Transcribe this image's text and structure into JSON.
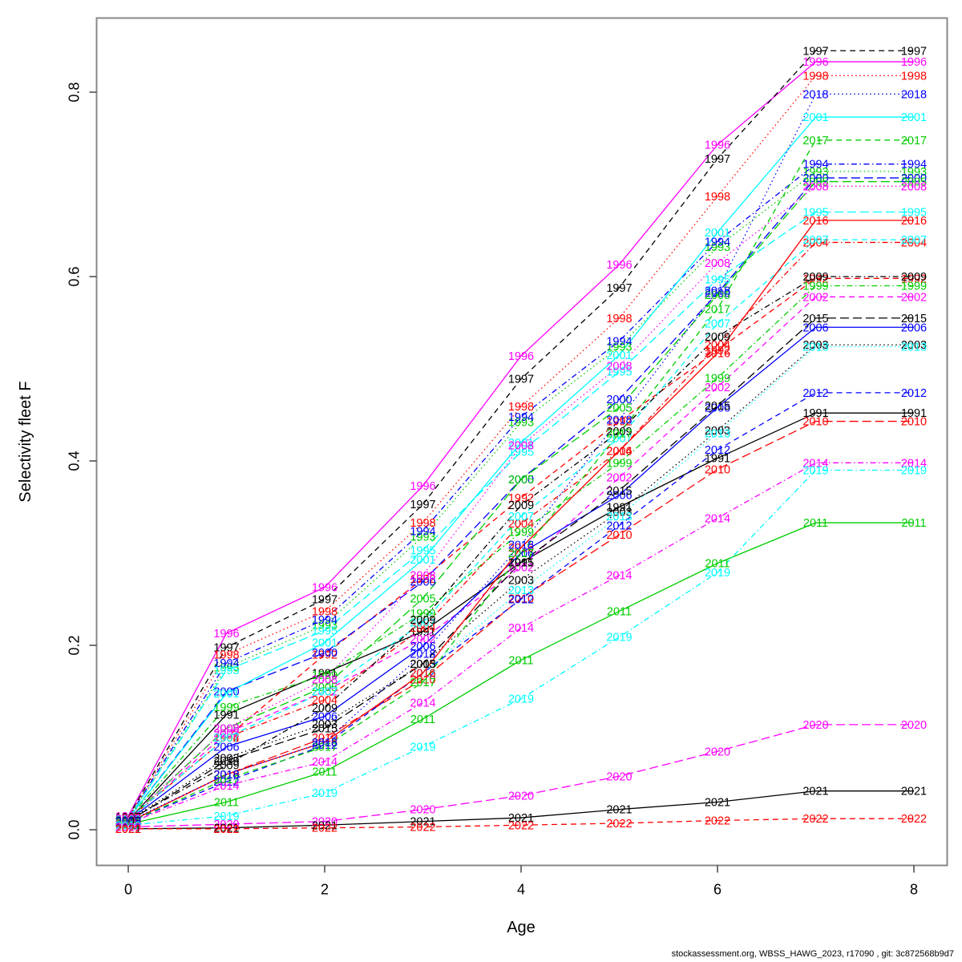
{
  "footer": {
    "text": "stockassessment.org, WBSS_HAWG_2023, r17090 , git: 3c872568b9d7"
  },
  "chart_data": {
    "type": "line",
    "title": "",
    "xlabel": "Age",
    "ylabel": "Selectivity fleet F",
    "x": [
      0,
      1,
      2,
      3,
      4,
      5,
      6,
      7,
      8
    ],
    "xticks": [
      "0",
      "2",
      "4",
      "6",
      "8"
    ],
    "xtick_values": [
      0,
      2,
      4,
      6,
      8
    ],
    "yticks": [
      "0.0",
      "0.2",
      "0.4",
      "0.6",
      "0.8"
    ],
    "ytick_values": [
      0.0,
      0.2,
      0.4,
      0.6,
      0.8
    ],
    "xlim": [
      -0.3,
      8.3
    ],
    "ylim": [
      -0.03,
      0.885
    ],
    "grid": false,
    "legend_position": "none",
    "point_labels": "year at every age",
    "palette_note": "R default colors cycling by (year-1991) mod 6, line type cycling by (year-1991) mod 5",
    "colors": {
      "black": "#000000",
      "red": "#ff0000",
      "green": "#00cd00",
      "blue": "#0000ff",
      "cyan": "#00ffff",
      "magenta": "#ff00ff"
    },
    "series": [
      {
        "name": "1991",
        "color": "#000000",
        "dash": "solid",
        "values": [
          0.01,
          0.125,
          0.17,
          0.215,
          0.29,
          0.35,
          0.403,
          0.452,
          0.452
        ]
      },
      {
        "name": "1992",
        "color": "#ff0000",
        "dash": "dashed",
        "values": [
          0.011,
          0.1,
          0.19,
          0.272,
          0.36,
          0.443,
          0.52,
          0.598,
          0.598
        ]
      },
      {
        "name": "1993",
        "color": "#00cd00",
        "dash": "dotted",
        "values": [
          0.012,
          0.176,
          0.222,
          0.318,
          0.442,
          0.524,
          0.632,
          0.714,
          0.714
        ]
      },
      {
        "name": "1994",
        "color": "#0000ff",
        "dash": "dotdash",
        "values": [
          0.013,
          0.181,
          0.228,
          0.324,
          0.448,
          0.53,
          0.638,
          0.722,
          0.722
        ]
      },
      {
        "name": "1995",
        "color": "#00ffff",
        "dash": "longdash",
        "values": [
          0.012,
          0.173,
          0.216,
          0.303,
          0.41,
          0.497,
          0.597,
          0.67,
          0.67
        ]
      },
      {
        "name": "1996",
        "color": "#ff00ff",
        "dash": "solid",
        "values": [
          0.015,
          0.213,
          0.263,
          0.373,
          0.514,
          0.613,
          0.743,
          0.833,
          0.833
        ]
      },
      {
        "name": "1997",
        "color": "#000000",
        "dash": "dashed",
        "values": [
          0.014,
          0.198,
          0.25,
          0.353,
          0.489,
          0.588,
          0.728,
          0.845,
          0.845
        ]
      },
      {
        "name": "1998",
        "color": "#ff0000",
        "dash": "dotted",
        "values": [
          0.013,
          0.19,
          0.237,
          0.333,
          0.459,
          0.555,
          0.687,
          0.818,
          0.818
        ]
      },
      {
        "name": "1999",
        "color": "#00cd00",
        "dash": "dotdash",
        "values": [
          0.012,
          0.133,
          0.168,
          0.235,
          0.323,
          0.398,
          0.49,
          0.59,
          0.59
        ]
      },
      {
        "name": "2000",
        "color": "#0000ff",
        "dash": "longdash",
        "values": [
          0.012,
          0.15,
          0.192,
          0.269,
          0.38,
          0.467,
          0.582,
          0.707,
          0.707
        ]
      },
      {
        "name": "2001",
        "color": "#00ffff",
        "dash": "solid",
        "values": [
          0.012,
          0.148,
          0.203,
          0.293,
          0.42,
          0.515,
          0.648,
          0.773,
          0.773
        ]
      },
      {
        "name": "2002",
        "color": "#ff00ff",
        "dash": "dashed",
        "values": [
          0.01,
          0.105,
          0.15,
          0.207,
          0.285,
          0.382,
          0.48,
          0.578,
          0.578
        ]
      },
      {
        "name": "2003",
        "color": "#000000",
        "dash": "dotted",
        "values": [
          0.01,
          0.078,
          0.115,
          0.18,
          0.271,
          0.345,
          0.433,
          0.526,
          0.526
        ]
      },
      {
        "name": "2004",
        "color": "#ff0000",
        "dash": "dotdash",
        "values": [
          0.011,
          0.1,
          0.141,
          0.219,
          0.332,
          0.411,
          0.526,
          0.637,
          0.637
        ]
      },
      {
        "name": "2005",
        "color": "#00cd00",
        "dash": "longdash",
        "values": [
          0.011,
          0.11,
          0.155,
          0.251,
          0.38,
          0.458,
          0.58,
          0.703,
          0.703
        ]
      },
      {
        "name": "2006",
        "color": "#0000ff",
        "dash": "solid",
        "values": [
          0.01,
          0.09,
          0.123,
          0.199,
          0.3,
          0.363,
          0.458,
          0.545,
          0.545
        ]
      },
      {
        "name": "2007",
        "color": "#00ffff",
        "dash": "dashed",
        "values": [
          0.011,
          0.1,
          0.15,
          0.225,
          0.34,
          0.425,
          0.549,
          0.64,
          0.64
        ]
      },
      {
        "name": "2008",
        "color": "#ff00ff",
        "dash": "dotted",
        "values": [
          0.012,
          0.11,
          0.163,
          0.276,
          0.417,
          0.503,
          0.615,
          0.698,
          0.698
        ]
      },
      {
        "name": "2009",
        "color": "#000000",
        "dash": "dotdash",
        "values": [
          0.01,
          0.07,
          0.132,
          0.228,
          0.352,
          0.432,
          0.535,
          0.6,
          0.6
        ]
      },
      {
        "name": "2010",
        "color": "#ff0000",
        "dash": "longdash",
        "values": [
          0.008,
          0.06,
          0.1,
          0.163,
          0.251,
          0.32,
          0.391,
          0.443,
          0.443
        ]
      },
      {
        "name": "2011",
        "color": "#00cd00",
        "dash": "solid",
        "values": [
          0.006,
          0.03,
          0.063,
          0.12,
          0.184,
          0.237,
          0.289,
          0.333,
          0.333
        ]
      },
      {
        "name": "2012",
        "color": "#0000ff",
        "dash": "dashed",
        "values": [
          0.008,
          0.052,
          0.092,
          0.17,
          0.25,
          0.33,
          0.412,
          0.474,
          0.474
        ]
      },
      {
        "name": "2013",
        "color": "#00ffff",
        "dash": "dotted",
        "values": [
          0.009,
          0.06,
          0.095,
          0.17,
          0.26,
          0.34,
          0.43,
          0.524,
          0.524
        ]
      },
      {
        "name": "2014",
        "color": "#ff00ff",
        "dash": "dotdash",
        "values": [
          0.007,
          0.048,
          0.074,
          0.138,
          0.219,
          0.276,
          0.338,
          0.398,
          0.398
        ]
      },
      {
        "name": "2015",
        "color": "#000000",
        "dash": "longdash",
        "values": [
          0.009,
          0.075,
          0.11,
          0.18,
          0.29,
          0.368,
          0.46,
          0.555,
          0.555
        ]
      },
      {
        "name": "2016",
        "color": "#ff0000",
        "dash": "solid",
        "values": [
          0.008,
          0.06,
          0.095,
          0.17,
          0.306,
          0.411,
          0.517,
          0.661,
          0.661
        ]
      },
      {
        "name": "2017",
        "color": "#00cd00",
        "dash": "dashed",
        "values": [
          0.008,
          0.055,
          0.09,
          0.16,
          0.3,
          0.43,
          0.565,
          0.748,
          0.748
        ]
      },
      {
        "name": "2018",
        "color": "#0000ff",
        "dash": "dotted",
        "values": [
          0.009,
          0.06,
          0.095,
          0.191,
          0.309,
          0.445,
          0.585,
          0.798,
          0.798
        ]
      },
      {
        "name": "2019",
        "color": "#00ffff",
        "dash": "dotdash",
        "values": [
          0.005,
          0.015,
          0.04,
          0.09,
          0.142,
          0.209,
          0.279,
          0.39,
          0.39
        ]
      },
      {
        "name": "2020",
        "color": "#ff00ff",
        "dash": "longdash",
        "values": [
          0.003,
          0.006,
          0.009,
          0.022,
          0.037,
          0.058,
          0.085,
          0.114,
          0.114
        ]
      },
      {
        "name": "2021",
        "color": "#000000",
        "dash": "solid",
        "values": [
          0.001,
          0.002,
          0.005,
          0.009,
          0.013,
          0.022,
          0.03,
          0.042,
          0.042
        ]
      },
      {
        "name": "2022",
        "color": "#ff0000",
        "dash": "dashed",
        "values": [
          0.001,
          0.001,
          0.002,
          0.003,
          0.005,
          0.007,
          0.01,
          0.012,
          0.012
        ]
      }
    ]
  }
}
